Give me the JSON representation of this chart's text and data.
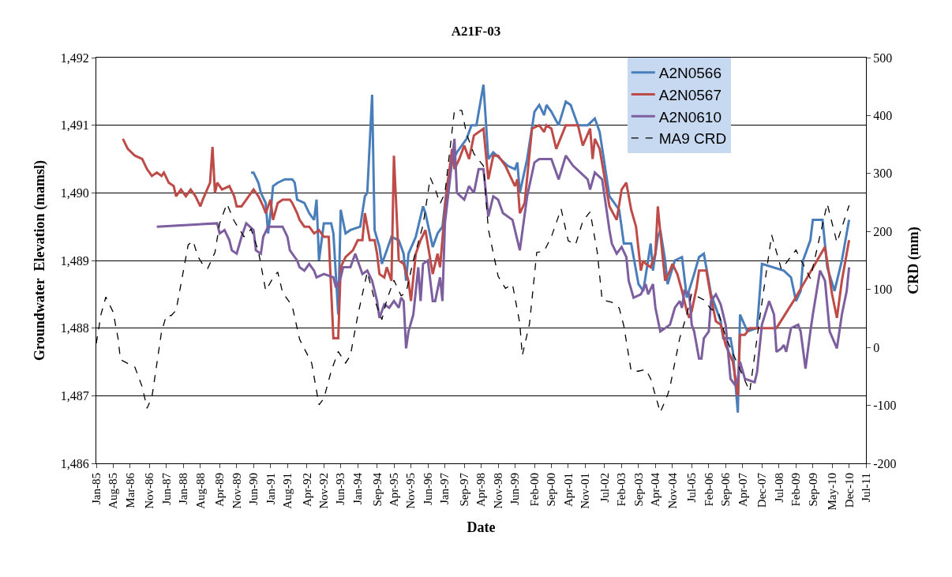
{
  "chart_data": {
    "type": "line",
    "title": "A21F-03",
    "xlabel": "Date",
    "ylabel": "Groundwater  Elevation (mamsl)",
    "y2label": "CRD (mm)",
    "xlim": [
      "1985-01",
      "2011-07"
    ],
    "xticks": [
      {
        "value": "1985-01",
        "label": "Jan-85"
      },
      {
        "value": "1985-08",
        "label": "Aug-85"
      },
      {
        "value": "1986-03",
        "label": "Mar-86"
      },
      {
        "value": "1986-11",
        "label": "Nov-86"
      },
      {
        "value": "1987-06",
        "label": "Jun-87"
      },
      {
        "value": "1988-01",
        "label": "Jan-88"
      },
      {
        "value": "1988-08",
        "label": "Aug-88"
      },
      {
        "value": "1989-04",
        "label": "Apr-89"
      },
      {
        "value": "1989-11",
        "label": "Nov-89"
      },
      {
        "value": "1990-06",
        "label": "Jun-90"
      },
      {
        "value": "1991-01",
        "label": "Jan-91"
      },
      {
        "value": "1991-08",
        "label": "Aug-91"
      },
      {
        "value": "1992-04",
        "label": "Apr-92"
      },
      {
        "value": "1992-11",
        "label": "Nov-92"
      },
      {
        "value": "1993-06",
        "label": "Jun-93"
      },
      {
        "value": "1994-01",
        "label": "Jan-94"
      },
      {
        "value": "1994-09",
        "label": "Sep-94"
      },
      {
        "value": "1995-04",
        "label": "Apr-95"
      },
      {
        "value": "1995-11",
        "label": "Nov-95"
      },
      {
        "value": "1996-06",
        "label": "Jun-96"
      },
      {
        "value": "1997-01",
        "label": "Jan-97"
      },
      {
        "value": "1997-09",
        "label": "Sep-97"
      },
      {
        "value": "1998-04",
        "label": "Apr-98"
      },
      {
        "value": "1998-11",
        "label": "Nov-98"
      },
      {
        "value": "1999-06",
        "label": "Jun-99"
      },
      {
        "value": "2000-02",
        "label": "Feb-00"
      },
      {
        "value": "2000-09",
        "label": "Sep-00"
      },
      {
        "value": "2001-04",
        "label": "Apr-01"
      },
      {
        "value": "2001-11",
        "label": "Nov-01"
      },
      {
        "value": "2002-07",
        "label": "Jul-02"
      },
      {
        "value": "2003-02",
        "label": "Feb-03"
      },
      {
        "value": "2003-09",
        "label": "Sep-03"
      },
      {
        "value": "2004-04",
        "label": "Apr-04"
      },
      {
        "value": "2004-11",
        "label": "Nov-04"
      },
      {
        "value": "2005-07",
        "label": "Jul-05"
      },
      {
        "value": "2006-02",
        "label": "Feb-06"
      },
      {
        "value": "2006-09",
        "label": "Sep-06"
      },
      {
        "value": "2007-04",
        "label": "Apr-07"
      },
      {
        "value": "2007-12",
        "label": "Dec-07"
      },
      {
        "value": "2008-07",
        "label": "Jul-08"
      },
      {
        "value": "2009-02",
        "label": "Feb-09"
      },
      {
        "value": "2009-09",
        "label": "Sep-09"
      },
      {
        "value": "2010-05",
        "label": "May-10"
      },
      {
        "value": "2010-12",
        "label": "Dec-10"
      },
      {
        "value": "2011-07",
        "label": "Jul-11"
      }
    ],
    "ylim": [
      1486,
      1492
    ],
    "yticks": [
      {
        "value": 1486,
        "label": "1,486"
      },
      {
        "value": 1487,
        "label": "1,487"
      },
      {
        "value": 1488,
        "label": "1,488"
      },
      {
        "value": 1489,
        "label": "1,489"
      },
      {
        "value": 1490,
        "label": "1,490"
      },
      {
        "value": 1491,
        "label": "1,491"
      },
      {
        "value": 1492,
        "label": "1,492"
      }
    ],
    "y2lim": [
      -200,
      500
    ],
    "y2ticks": [
      -200,
      -100,
      0,
      100,
      200,
      300,
      400,
      500
    ],
    "grid": "y",
    "legend": "top right",
    "marker": "none",
    "series": [
      {
        "name": "A2N0566",
        "color": "#4a7ebb",
        "line_style": "solid",
        "x": [
          "1990-05",
          "1990-06",
          "1990-08",
          "1990-09",
          "1990-11",
          "1990-12",
          "1991-01",
          "1991-02",
          "1991-04",
          "1991-07",
          "1991-10",
          "1991-11",
          "1991-12",
          "1992-03",
          "1992-05",
          "1992-07",
          "1992-08",
          "1992-09",
          "1992-11",
          "1993-02",
          "1993-03",
          "1993-05",
          "1993-06",
          "1993-08",
          "1993-10",
          "1994-02",
          "1994-04",
          "1994-05",
          "1994-07",
          "1994-08",
          "1994-10",
          "1994-11",
          "1995-01",
          "1995-03",
          "1995-06",
          "1995-08",
          "1995-09",
          "1995-10",
          "1996-01",
          "1996-04",
          "1996-05",
          "1996-08",
          "1996-10",
          "1996-12",
          "1997-02",
          "1997-04",
          "1997-06",
          "1997-10",
          "1997-12",
          "1998-02",
          "1998-05",
          "1998-07",
          "1998-09",
          "1999-03",
          "1999-06",
          "1999-07",
          "1999-08",
          "1999-11",
          "2000-02",
          "2000-04",
          "2000-06",
          "2000-07",
          "2000-09",
          "2000-12",
          "2001-03",
          "2001-05",
          "2001-08",
          "2001-12",
          "2002-03",
          "2002-05",
          "2002-09",
          "2003-01",
          "2003-03",
          "2003-06",
          "2003-09",
          "2003-11",
          "2004-02",
          "2004-03",
          "2004-05",
          "2004-06",
          "2004-08",
          "2004-09",
          "2004-12",
          "2005-03",
          "2005-05",
          "2005-08",
          "2005-10",
          "2005-12",
          "2006-03",
          "2006-07",
          "2006-08",
          "2006-11",
          "2006-12",
          "2007-02",
          "2007-03",
          "2007-06",
          "2007-10",
          "2007-12",
          "2008-09",
          "2008-12",
          "2009-02",
          "2009-04",
          "2009-05",
          "2009-08",
          "2009-09",
          "2010-01",
          "2010-03",
          "2010-06",
          "2010-09",
          "2010-12"
        ],
        "values": [
          1490.3,
          1490.3,
          1490.15,
          1490.0,
          1489.85,
          1489.4,
          1489.7,
          1490.1,
          1490.15,
          1490.2,
          1490.2,
          1490.15,
          1489.9,
          1489.85,
          1489.7,
          1489.6,
          1489.9,
          1489.0,
          1489.55,
          1489.55,
          1489.4,
          1488.2,
          1489.75,
          1489.4,
          1489.45,
          1489.5,
          1489.95,
          1490.0,
          1491.45,
          1489.45,
          1489.2,
          1488.95,
          1489.15,
          1489.35,
          1489.3,
          1489.1,
          1488.7,
          1489.1,
          1489.35,
          1489.8,
          1489.7,
          1489.2,
          1489.4,
          1489.5,
          1490.15,
          1490.45,
          1490.6,
          1490.8,
          1491.0,
          1491.0,
          1491.6,
          1490.5,
          1490.6,
          1490.4,
          1490.35,
          1490.45,
          1490.0,
          1490.5,
          1491.2,
          1491.3,
          1491.15,
          1491.3,
          1491.2,
          1491.0,
          1491.35,
          1491.3,
          1491.0,
          1491.0,
          1491.1,
          1490.9,
          1489.95,
          1489.75,
          1489.25,
          1489.25,
          1488.65,
          1488.55,
          1489.25,
          1488.85,
          1489.35,
          1489.45,
          1489.0,
          1488.65,
          1489.0,
          1489.05,
          1488.45,
          1488.8,
          1489.05,
          1489.1,
          1488.5,
          1488.1,
          1487.85,
          1487.85,
          1487.65,
          1486.75,
          1488.2,
          1487.95,
          1488.0,
          1488.95,
          1488.85,
          1488.75,
          1488.4,
          1488.55,
          1489.0,
          1489.3,
          1489.6,
          1489.6,
          1488.9,
          1488.55,
          1489.0,
          1489.6
        ]
      },
      {
        "name": "A2N0567",
        "color": "#be4b48",
        "line_style": "solid",
        "x": [
          "1985-12",
          "1986-02",
          "1986-05",
          "1986-08",
          "1986-10",
          "1986-12",
          "1987-02",
          "1987-04",
          "1987-05",
          "1987-07",
          "1987-09",
          "1987-10",
          "1987-12",
          "1988-02",
          "1988-04",
          "1988-06",
          "1988-08",
          "1988-09",
          "1988-12",
          "1989-01",
          "1989-02",
          "1989-03",
          "1989-05",
          "1989-08",
          "1989-10",
          "1989-11",
          "1990-01",
          "1990-04",
          "1990-06",
          "1990-08",
          "1990-10",
          "1990-11",
          "1991-01",
          "1991-02",
          "1991-04",
          "1991-06",
          "1991-09",
          "1991-10",
          "1991-12",
          "1992-01",
          "1992-03",
          "1992-05",
          "1992-07",
          "1992-09",
          "1992-11",
          "1993-01",
          "1993-03",
          "1993-05",
          "1993-06",
          "1993-08",
          "1993-11",
          "1994-01",
          "1994-03",
          "1994-04",
          "1994-06",
          "1994-08",
          "1994-09",
          "1994-10",
          "1994-12",
          "1995-01",
          "1995-03",
          "1995-04",
          "1995-06",
          "1995-08",
          "1995-10",
          "1995-11",
          "1996-01",
          "1996-03",
          "1996-05",
          "1996-08",
          "1996-10",
          "1996-11",
          "1997-01",
          "1997-02",
          "1997-04",
          "1997-05",
          "1997-07",
          "1997-09",
          "1997-11",
          "1998-01",
          "1998-05",
          "1998-07",
          "1998-09",
          "1998-11",
          "1999-02",
          "1999-04",
          "1999-06",
          "1999-07",
          "1999-08",
          "1999-10",
          "2000-01",
          "2000-04",
          "2000-06",
          "2000-07",
          "2000-09",
          "2000-11",
          "2001-03",
          "2001-08",
          "2001-10",
          "2002-01",
          "2002-02",
          "2002-03",
          "2002-05",
          "2002-09",
          "2002-12",
          "2003-02",
          "2003-04",
          "2003-06",
          "2003-08",
          "2003-10",
          "2003-11",
          "2003-12",
          "2004-02",
          "2004-04",
          "2004-05",
          "2004-07",
          "2004-08",
          "2004-10",
          "2004-11",
          "2005-01",
          "2005-03",
          "2005-05",
          "2005-06",
          "2005-07",
          "2005-09",
          "2005-10",
          "2006-01",
          "2006-03",
          "2006-05",
          "2006-07",
          "2006-09",
          "2006-12",
          "2007-02",
          "2007-03",
          "2007-05",
          "2007-07",
          "2007-11",
          "2008-06",
          "2009-01",
          "2010-02",
          "2010-05",
          "2010-07",
          "2010-09",
          "2010-12"
        ],
        "values": [
          1490.8,
          1490.65,
          1490.55,
          1490.5,
          1490.35,
          1490.25,
          1490.3,
          1490.25,
          1490.3,
          1490.15,
          1490.1,
          1489.95,
          1490.05,
          1489.95,
          1490.05,
          1489.95,
          1489.8,
          1489.9,
          1490.15,
          1490.68,
          1490.0,
          1490.15,
          1490.05,
          1490.1,
          1489.95,
          1489.8,
          1489.8,
          1489.95,
          1490.05,
          1489.95,
          1489.8,
          1489.7,
          1489.9,
          1489.6,
          1489.85,
          1489.9,
          1489.9,
          1489.85,
          1489.7,
          1489.6,
          1489.5,
          1489.5,
          1489.4,
          1489.45,
          1489.35,
          1489.35,
          1487.85,
          1487.85,
          1488.9,
          1489.05,
          1489.15,
          1489.3,
          1489.3,
          1489.7,
          1489.3,
          1489.3,
          1489.1,
          1488.8,
          1488.75,
          1488.9,
          1488.7,
          1490.55,
          1489.0,
          1488.95,
          1488.7,
          1488.4,
          1489.1,
          1489.3,
          1489.45,
          1488.8,
          1489.1,
          1488.9,
          1489.75,
          1490.1,
          1490.65,
          1490.35,
          1490.5,
          1490.7,
          1490.5,
          1490.85,
          1490.95,
          1490.2,
          1490.55,
          1490.55,
          1490.4,
          1490.25,
          1490.1,
          1490.2,
          1489.7,
          1489.85,
          1490.95,
          1491.0,
          1490.9,
          1491.0,
          1490.95,
          1490.65,
          1491.0,
          1491.0,
          1490.7,
          1490.95,
          1490.5,
          1490.8,
          1490.65,
          1489.8,
          1489.6,
          1490.05,
          1490.15,
          1489.75,
          1489.5,
          1488.85,
          1489.0,
          1488.95,
          1488.9,
          1489.1,
          1489.8,
          1489.05,
          1488.7,
          1488.85,
          1488.95,
          1488.8,
          1488.55,
          1488.25,
          1488.15,
          1488.25,
          1488.6,
          1488.85,
          1488.85,
          1488.45,
          1488.1,
          1488.05,
          1487.75,
          1487.5,
          1487.0,
          1487.9,
          1487.9,
          1488.0,
          1488.0,
          1488.0,
          1488.4,
          1489.2,
          1488.5,
          1488.15,
          1488.7,
          1489.3
        ]
      },
      {
        "name": "A2N0610",
        "color": "#7d5fa0",
        "line_style": "solid",
        "x": [
          "1987-02",
          "1989-03",
          "1989-04",
          "1989-06",
          "1989-08",
          "1989-09",
          "1989-11",
          "1990-01",
          "1990-03",
          "1990-06",
          "1990-07",
          "1990-09",
          "1990-10",
          "1990-12",
          "1991-04",
          "1991-06",
          "1991-08",
          "1991-09",
          "1991-12",
          "1992-01",
          "1992-03",
          "1992-05",
          "1992-07",
          "1992-08",
          "1992-11",
          "1993-03",
          "1993-04",
          "1993-06",
          "1993-07",
          "1993-10",
          "1993-12",
          "1994-03",
          "1994-05",
          "1994-07",
          "1994-09",
          "1994-10",
          "1994-12",
          "1995-02",
          "1995-04",
          "1995-06",
          "1995-07",
          "1995-08",
          "1995-09",
          "1995-10",
          "1995-12",
          "1996-02",
          "1996-03",
          "1996-04",
          "1996-06",
          "1996-08",
          "1996-09",
          "1996-11",
          "1996-12",
          "1997-01",
          "1997-03",
          "1997-05",
          "1997-06",
          "1997-09",
          "1997-11",
          "1998-01",
          "1998-03",
          "1998-05",
          "1998-07",
          "1998-09",
          "1998-11",
          "1999-01",
          "1999-05",
          "1999-08",
          "1999-11",
          "2000-02",
          "2000-04",
          "2000-09",
          "2000-12",
          "2001-03",
          "2001-06",
          "2001-09",
          "2001-12",
          "2002-01",
          "2002-03",
          "2002-06",
          "2002-09",
          "2002-10",
          "2002-12",
          "2003-02",
          "2003-04",
          "2003-05",
          "2003-07",
          "2003-10",
          "2003-12",
          "2004-01",
          "2004-03",
          "2004-04",
          "2004-06",
          "2004-10",
          "2004-12",
          "2005-02",
          "2005-03",
          "2005-04",
          "2005-06",
          "2005-07",
          "2005-08",
          "2005-10",
          "2005-11",
          "2005-12",
          "2006-02",
          "2006-03",
          "2006-05",
          "2006-07",
          "2006-08",
          "2006-09",
          "2006-11",
          "2007-01",
          "2007-02",
          "2007-03",
          "2007-05",
          "2007-09",
          "2007-10",
          "2007-12",
          "2008-03",
          "2008-05",
          "2008-06",
          "2008-08",
          "2008-09",
          "2008-10",
          "2008-12",
          "2009-03",
          "2009-04",
          "2009-06",
          "2009-08",
          "2009-09",
          "2009-12",
          "2010-02",
          "2010-04",
          "2010-07",
          "2010-09",
          "2010-11",
          "2010-12"
        ],
        "values": [
          1489.5,
          1489.55,
          1489.4,
          1489.45,
          1489.3,
          1489.15,
          1489.1,
          1489.35,
          1489.55,
          1489.45,
          1489.15,
          1489.1,
          1489.35,
          1489.5,
          1489.5,
          1489.5,
          1489.35,
          1489.15,
          1489.0,
          1488.9,
          1488.85,
          1488.95,
          1488.85,
          1488.75,
          1488.8,
          1488.75,
          1488.6,
          1488.75,
          1488.9,
          1488.9,
          1489.1,
          1488.8,
          1488.85,
          1488.7,
          1488.4,
          1488.15,
          1488.35,
          1488.3,
          1488.4,
          1488.3,
          1488.45,
          1488.4,
          1487.7,
          1487.95,
          1488.2,
          1488.9,
          1488.4,
          1488.95,
          1489.0,
          1488.4,
          1488.4,
          1488.75,
          1488.4,
          1489.55,
          1490.15,
          1490.8,
          1490.0,
          1489.9,
          1490.1,
          1490.0,
          1490.35,
          1490.35,
          1489.65,
          1489.95,
          1489.9,
          1489.7,
          1489.6,
          1489.15,
          1489.95,
          1490.45,
          1490.5,
          1490.5,
          1490.2,
          1490.55,
          1490.4,
          1490.3,
          1490.2,
          1490.05,
          1490.3,
          1490.2,
          1489.45,
          1489.25,
          1489.1,
          1489.2,
          1489.05,
          1488.7,
          1488.45,
          1488.5,
          1488.65,
          1488.5,
          1488.65,
          1488.3,
          1487.95,
          1488.05,
          1488.3,
          1488.4,
          1488.3,
          1488.55,
          1488.5,
          1488.05,
          1487.95,
          1487.55,
          1487.55,
          1487.85,
          1487.95,
          1488.4,
          1488.5,
          1488.35,
          1488.2,
          1488.05,
          1487.25,
          1487.15,
          1487.25,
          1487.5,
          1487.25,
          1487.2,
          1487.35,
          1488.05,
          1488.4,
          1488.2,
          1487.65,
          1487.7,
          1487.75,
          1487.65,
          1488.0,
          1488.05,
          1487.95,
          1487.4,
          1487.95,
          1488.2,
          1488.85,
          1488.7,
          1487.95,
          1487.7,
          1488.2,
          1488.55,
          1488.9
        ]
      },
      {
        "name": "MA9 CRD",
        "color": "#000000",
        "line_style": "dashed",
        "axis": "y2",
        "x": [
          "1985-01",
          "1985-03",
          "1985-05",
          "1985-08",
          "1985-10",
          "1985-11",
          "1986-05",
          "1986-08",
          "1986-10",
          "1986-12",
          "1987-04",
          "1987-06",
          "1987-08",
          "1987-10",
          "1987-12",
          "1988-03",
          "1988-05",
          "1988-07",
          "1988-09",
          "1988-11",
          "1989-02",
          "1989-04",
          "1989-07",
          "1989-10",
          "1990-02",
          "1990-05",
          "1990-08",
          "1990-11",
          "1991-02",
          "1991-04",
          "1991-06",
          "1991-10",
          "1992-01",
          "1992-06",
          "1992-09",
          "1992-11",
          "1993-02",
          "1993-05",
          "1993-08",
          "1993-10",
          "1994-01",
          "1994-05",
          "1994-08",
          "1994-11",
          "1995-01",
          "1995-04",
          "1995-07",
          "1995-09",
          "1995-12",
          "1996-04",
          "1996-07",
          "1996-09",
          "1996-11",
          "1997-01",
          "1997-05",
          "1997-08",
          "1997-10",
          "1998-01",
          "1998-05",
          "1998-07",
          "1998-11",
          "1999-02",
          "1999-05",
          "1999-08",
          "1999-09",
          "1999-12",
          "2000-03",
          "2000-06",
          "2000-09",
          "2001-01",
          "2001-04",
          "2001-07",
          "2001-10",
          "2002-01",
          "2002-04",
          "2002-06",
          "2002-10",
          "2003-01",
          "2003-03",
          "2003-06",
          "2003-09",
          "2003-12",
          "2004-02",
          "2004-06",
          "2004-09",
          "2004-10",
          "2005-02",
          "2005-05",
          "2005-07",
          "2005-12",
          "2006-03",
          "2006-06",
          "2006-09",
          "2007-01",
          "2007-07",
          "2007-11",
          "2008-04",
          "2008-08",
          "2009-02",
          "2009-08",
          "2010-03",
          "2010-07",
          "2010-12"
        ],
        "values": [
          7,
          57,
          87,
          61,
          16,
          -21,
          -34,
          -68,
          -105,
          -86,
          27,
          55,
          55,
          64,
          109,
          177,
          184,
          157,
          143,
          136,
          164,
          214,
          248,
          218,
          191,
          204,
          166,
          98,
          120,
          130,
          95,
          71,
          14,
          -27,
          -99,
          -88,
          -41,
          -7,
          -27,
          -14,
          55,
          130,
          82,
          48,
          82,
          116,
          89,
          95,
          150,
          211,
          293,
          273,
          248,
          266,
          409,
          409,
          368,
          334,
          313,
          204,
          123,
          102,
          109,
          41,
          -14,
          41,
          164,
          166,
          191,
          239,
          184,
          177,
          218,
          234,
          164,
          82,
          78,
          68,
          37,
          -41,
          -41,
          -38,
          -54,
          -112,
          -82,
          -68,
          16,
          57,
          93,
          82,
          66,
          61,
          18,
          -20,
          -76,
          48,
          194,
          135,
          168,
          119,
          248,
          181,
          245
        ]
      }
    ]
  }
}
